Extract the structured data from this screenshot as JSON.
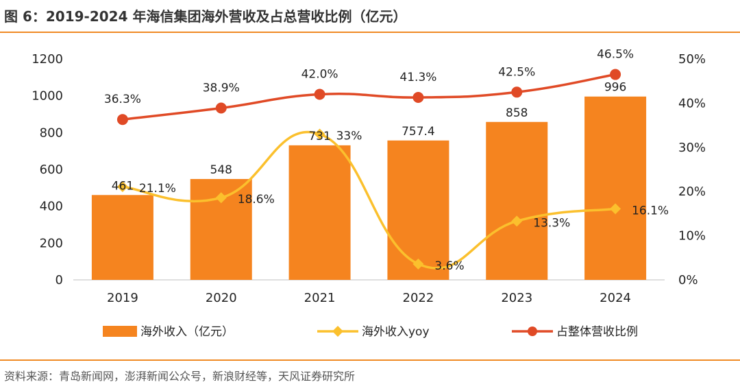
{
  "header": {
    "title": "图 6：2019-2024 年海信集团海外营收及占总营收比例（亿元）"
  },
  "footer": {
    "source": "资料来源：青岛新闻网，澎湃新闻公众号，新浪财经等，天风证券研究所"
  },
  "colors": {
    "accent_rule": "#f08a24",
    "bar": "#f5841f",
    "yoy_line": "#fbc02d",
    "share_line": "#e04a26"
  },
  "chart_data": {
    "type": "bar",
    "categories": [
      "2019",
      "2020",
      "2021",
      "2022",
      "2023",
      "2024"
    ],
    "y_left": {
      "lim": [
        0,
        1200
      ],
      "ticks": [
        "0",
        "200",
        "400",
        "600",
        "800",
        "1000",
        "1200"
      ]
    },
    "y_right": {
      "lim": [
        0,
        50
      ],
      "ticks": [
        "0%",
        "10%",
        "20%",
        "30%",
        "40%",
        "50%"
      ]
    },
    "grid": false,
    "legend_position": "bottom",
    "series": [
      {
        "name": "海外收入（亿元）",
        "type": "bar",
        "axis": "left",
        "values": [
          461,
          548,
          731,
          757.4,
          858,
          996
        ],
        "labels": [
          "461",
          "548",
          "731",
          "757.4",
          "858",
          "996"
        ]
      },
      {
        "name": "海外收入yoy",
        "type": "line",
        "smooth": true,
        "marker": "diamond",
        "axis": "right",
        "values": [
          21.1,
          18.6,
          33,
          3.6,
          13.3,
          16.1
        ],
        "labels": [
          "21.1%",
          "18.6%",
          "33%",
          "3.6%",
          "13.3%",
          "16.1%"
        ]
      },
      {
        "name": "占整体营收比例",
        "type": "line",
        "smooth": true,
        "marker": "circle",
        "axis": "right",
        "values": [
          36.3,
          38.9,
          42.0,
          41.3,
          42.5,
          46.5
        ],
        "labels": [
          "36.3%",
          "38.9%",
          "42.0%",
          "41.3%",
          "42.5%",
          "46.5%"
        ]
      }
    ]
  }
}
